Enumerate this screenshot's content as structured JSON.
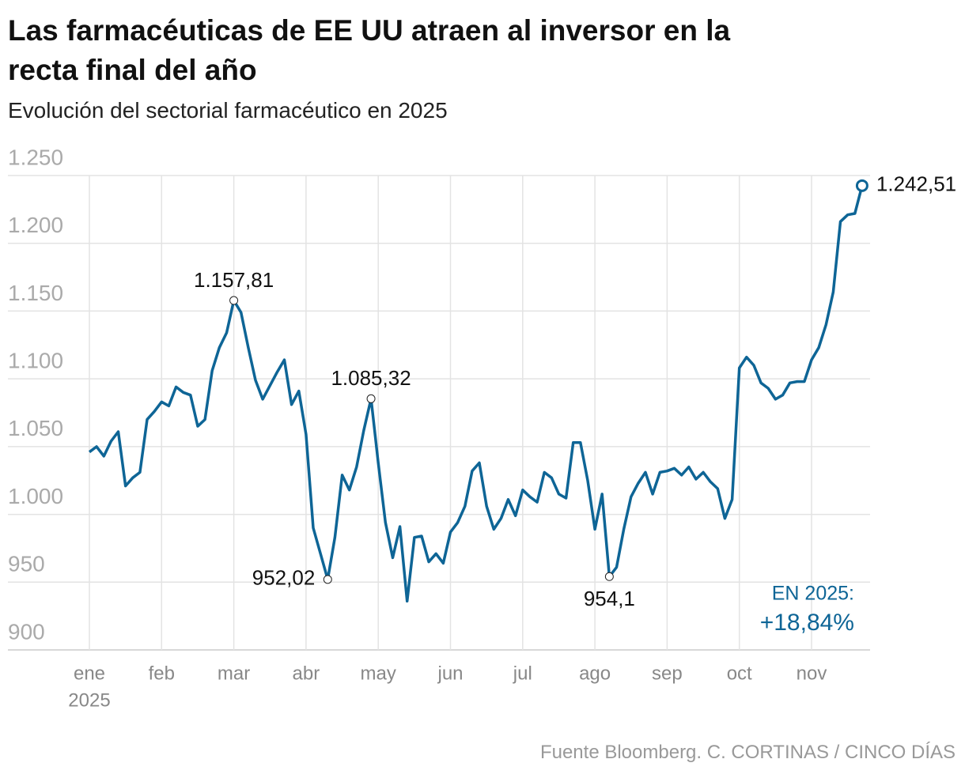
{
  "chart_data": {
    "type": "line",
    "title": "Las farmacéuticas de EE UU atraen al inversor en la recta final del año",
    "subtitle": "Evolución del sectorial farmacéutico en 2025",
    "source": "Fuente Bloomberg. C. CORTINAS / CINCO DÍAS",
    "x_year_label": "2025",
    "categories": [
      "ene",
      null,
      null,
      null,
      null,
      null,
      null,
      null,
      null,
      null,
      "feb",
      null,
      null,
      null,
      null,
      null,
      null,
      null,
      null,
      null,
      "mar",
      null,
      null,
      null,
      null,
      null,
      null,
      null,
      null,
      null,
      "abr",
      null,
      null,
      null,
      null,
      null,
      null,
      null,
      null,
      null,
      "may",
      null,
      null,
      null,
      null,
      null,
      null,
      null,
      null,
      null,
      "jun",
      null,
      null,
      null,
      null,
      null,
      null,
      null,
      null,
      null,
      "jul",
      null,
      null,
      null,
      null,
      null,
      null,
      null,
      null,
      null,
      "ago",
      null,
      null,
      null,
      null,
      null,
      null,
      null,
      null,
      null,
      "sep",
      null,
      null,
      null,
      null,
      null,
      null,
      null,
      null,
      null,
      "oct",
      null,
      null,
      null,
      null,
      null,
      null,
      null,
      null,
      null,
      "nov",
      null,
      null,
      null,
      null,
      null,
      null,
      null
    ],
    "series": [
      {
        "color": "#0e6596",
        "values": [
          1046,
          1050,
          1043,
          1054,
          1061,
          1021,
          1027,
          1031,
          1070,
          1076,
          1083,
          1080,
          1094,
          1090,
          1088,
          1065,
          1070,
          1106,
          1123,
          1134,
          1157.81,
          1149,
          1123,
          1099,
          1085,
          1095,
          1105,
          1114,
          1081,
          1091,
          1059,
          990,
          971,
          952.02,
          983,
          1029,
          1018,
          1035,
          1062,
          1085.32,
          1038,
          994,
          968,
          991,
          936,
          983,
          984,
          965,
          971,
          964,
          987,
          994,
          1006,
          1032,
          1038,
          1006,
          989,
          997,
          1011,
          999,
          1018,
          1013,
          1009,
          1031,
          1027,
          1015,
          1012,
          1053,
          1053,
          1025,
          989,
          1015,
          954.1,
          961,
          989,
          1013,
          1023,
          1031,
          1015,
          1031,
          1032,
          1034,
          1029,
          1035,
          1026,
          1031,
          1024,
          1019,
          997,
          1011,
          1108,
          1116,
          1110,
          1097,
          1093,
          1085,
          1088,
          1097,
          1098,
          1098,
          1114,
          1123,
          1140,
          1164,
          1216,
          1221,
          1222,
          1242.51
        ],
        "value_labels": [
          null,
          null,
          null,
          null,
          null,
          null,
          null,
          null,
          null,
          null,
          null,
          null,
          null,
          null,
          null,
          null,
          null,
          null,
          null,
          null,
          "1.157,81",
          null,
          null,
          null,
          null,
          null,
          null,
          null,
          null,
          null,
          null,
          null,
          null,
          "952,02",
          null,
          null,
          null,
          null,
          null,
          "1.085,32",
          null,
          null,
          null,
          null,
          null,
          null,
          null,
          null,
          null,
          null,
          null,
          null,
          null,
          null,
          null,
          null,
          null,
          null,
          null,
          null,
          null,
          null,
          null,
          null,
          null,
          null,
          null,
          null,
          null,
          null,
          null,
          null,
          "954,1",
          null,
          null,
          null,
          null,
          null,
          null,
          null,
          null,
          null,
          null,
          null,
          null,
          null,
          null,
          null,
          null,
          null,
          null,
          null,
          null,
          null,
          null,
          null,
          null,
          null,
          null,
          null,
          null,
          null,
          null,
          null,
          null,
          null,
          null,
          "1.242,51"
        ]
      }
    ],
    "ylim": [
      900,
      1250
    ],
    "yticks": [
      900,
      950,
      {
        "value": 1000,
        "label": "1.000"
      },
      {
        "value": 1050,
        "label": "1.050"
      },
      {
        "value": 1100,
        "label": "1.100"
      },
      {
        "value": 1150,
        "label": "1.150"
      },
      {
        "value": 1200,
        "label": "1.200"
      },
      {
        "value": 1250,
        "label": "1.250"
      }
    ],
    "grid": true,
    "annotation": {
      "label": "EN 2025:",
      "value": "+18,84%"
    }
  }
}
